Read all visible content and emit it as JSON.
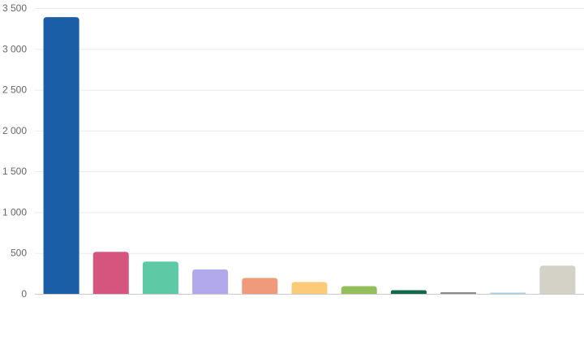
{
  "chart_data": {
    "type": "bar",
    "title": "",
    "xlabel": "",
    "ylabel": "",
    "ylim": [
      0,
      3500
    ],
    "yticks": [
      0,
      500,
      1000,
      1500,
      2000,
      2500,
      3000,
      3500
    ],
    "ytick_labels": [
      "0",
      "500",
      "1 000",
      "1 500",
      "2 000",
      "2 500",
      "3 000",
      "3 500"
    ],
    "grid": true,
    "legend": "none",
    "categories": [
      "",
      "",
      "",
      "",
      "",
      "",
      "",
      "",
      "",
      "",
      ""
    ],
    "values": [
      3390,
      515,
      395,
      300,
      195,
      145,
      95,
      45,
      20,
      8,
      345
    ],
    "colors": [
      "#1a5ea8",
      "#d6557f",
      "#5ecaa5",
      "#b2a9ea",
      "#f09a7c",
      "#fbcb7a",
      "#94bf5c",
      "#12664a",
      "#8a8a8a",
      "#a9cfe8",
      "#d4d1c6"
    ]
  }
}
